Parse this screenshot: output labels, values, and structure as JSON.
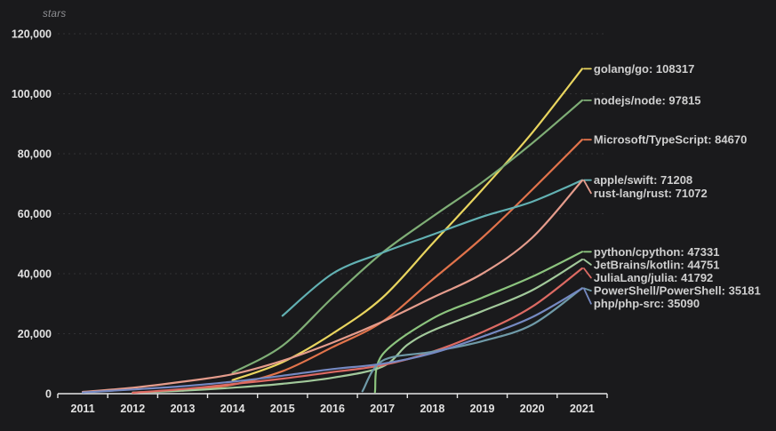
{
  "colors": {
    "background": "#1a1a1c",
    "grid": "#313134",
    "axis": "#e6e6e6",
    "tick_label": "#e2e2e2",
    "series_label": "#cfcfcf"
  },
  "chart_data": {
    "type": "line",
    "title": "",
    "ylabel": "stars",
    "xlabel": "",
    "ylim": [
      0,
      120000
    ],
    "xlim": [
      2011,
      2022
    ],
    "grid": "dashed-horizontal",
    "legend_position": "line-end-labels-right",
    "yticks": [
      0,
      20000,
      40000,
      60000,
      80000,
      100000,
      120000
    ],
    "ytick_labels": [
      "0",
      "20,000",
      "40,000",
      "60,000",
      "80,000",
      "100,000",
      "120,000"
    ],
    "x_years": [
      2011,
      2012,
      2013,
      2014,
      2015,
      2016,
      2017,
      2018,
      2019,
      2020,
      2021
    ],
    "x_tick_labels": [
      "2011",
      "2012",
      "2013",
      "2014",
      "2015",
      "2016",
      "2017",
      "2018",
      "2019",
      "2020",
      "2021"
    ],
    "series": [
      {
        "name": "golang/go",
        "final_value": 108317,
        "label": "golang/go: 108317",
        "color": "#e9d55f",
        "points": [
          [
            2014,
            4500
          ],
          [
            2015,
            10500
          ],
          [
            2016,
            20000
          ],
          [
            2017,
            32000
          ],
          [
            2018,
            50000
          ],
          [
            2019,
            68000
          ],
          [
            2020,
            87000
          ],
          [
            2021,
            108317
          ]
        ]
      },
      {
        "name": "nodejs/node",
        "final_value": 97815,
        "label": "nodejs/node: 97815",
        "color": "#7fae76",
        "points": [
          [
            2014,
            7000
          ],
          [
            2015,
            16000
          ],
          [
            2016,
            32000
          ],
          [
            2017,
            47000
          ],
          [
            2018,
            59000
          ],
          [
            2019,
            70500
          ],
          [
            2020,
            83500
          ],
          [
            2021,
            97815
          ]
        ]
      },
      {
        "name": "Microsoft/TypeScript",
        "final_value": 84670,
        "label": "Microsoft/TypeScript: 84670",
        "color": "#e1734b",
        "points": [
          [
            2013,
            1000
          ],
          [
            2014,
            3000
          ],
          [
            2015,
            7500
          ],
          [
            2016,
            15500
          ],
          [
            2017,
            24000
          ],
          [
            2018,
            38000
          ],
          [
            2019,
            52000
          ],
          [
            2020,
            68000
          ],
          [
            2021,
            84670
          ]
        ]
      },
      {
        "name": "apple/swift",
        "final_value": 71208,
        "label": "apple/swift: 71208",
        "color": "#62b1b3",
        "points": [
          [
            2015,
            26000
          ],
          [
            2016,
            40000
          ],
          [
            2017,
            47000
          ],
          [
            2018,
            53000
          ],
          [
            2019,
            59000
          ],
          [
            2020,
            64000
          ],
          [
            2021,
            71208
          ]
        ]
      },
      {
        "name": "rust-lang/rust",
        "final_value": 71072,
        "label": "rust-lang/rust: 71072",
        "color": "#e59c8c",
        "points": [
          [
            2011,
            600
          ],
          [
            2012,
            2000
          ],
          [
            2013,
            4000
          ],
          [
            2014,
            6500
          ],
          [
            2015,
            11000
          ],
          [
            2016,
            17000
          ],
          [
            2017,
            24000
          ],
          [
            2018,
            32000
          ],
          [
            2019,
            40000
          ],
          [
            2020,
            52000
          ],
          [
            2021,
            71072
          ]
        ]
      },
      {
        "name": "python/cpython",
        "final_value": 47331,
        "label": "python/cpython: 47331",
        "color": "#8cc47e",
        "points": [
          [
            2016.85,
            500
          ],
          [
            2017,
            13000
          ],
          [
            2018,
            25000
          ],
          [
            2019,
            32000
          ],
          [
            2020,
            39000
          ],
          [
            2021,
            47331
          ]
        ]
      },
      {
        "name": "JetBrains/kotlin",
        "final_value": 44751,
        "label": "JetBrains/kotlin: 44751",
        "color": "#a2c99b",
        "points": [
          [
            2012,
            400
          ],
          [
            2013,
            1000
          ],
          [
            2014,
            2000
          ],
          [
            2015,
            3300
          ],
          [
            2016,
            5300
          ],
          [
            2017,
            9000
          ],
          [
            2017.5,
            16300
          ],
          [
            2018,
            21000
          ],
          [
            2019,
            27500
          ],
          [
            2020,
            34500
          ],
          [
            2021,
            44751
          ]
        ]
      },
      {
        "name": "JuliaLang/julia",
        "final_value": 41792,
        "label": "JuliaLang/julia: 41792",
        "color": "#dd6a63",
        "points": [
          [
            2012,
            300
          ],
          [
            2013,
            1500
          ],
          [
            2014,
            3200
          ],
          [
            2015,
            5000
          ],
          [
            2016,
            7200
          ],
          [
            2017,
            9500
          ],
          [
            2018,
            14000
          ],
          [
            2019,
            20500
          ],
          [
            2020,
            29000
          ],
          [
            2021,
            41792
          ]
        ]
      },
      {
        "name": "PowerShell/PowerShell",
        "final_value": 35181,
        "label": "PowerShell/PowerShell: 35181",
        "color": "#6f9aa8",
        "points": [
          [
            2016.6,
            800
          ],
          [
            2017,
            11000
          ],
          [
            2018,
            14000
          ],
          [
            2019,
            17500
          ],
          [
            2020,
            23000
          ],
          [
            2021,
            35181
          ]
        ]
      },
      {
        "name": "php/php-src",
        "final_value": 35090,
        "label": "php/php-src: 35090",
        "color": "#7589c2",
        "points": [
          [
            2011,
            400
          ],
          [
            2012,
            1400
          ],
          [
            2013,
            2500
          ],
          [
            2014,
            4000
          ],
          [
            2015,
            6000
          ],
          [
            2016,
            8200
          ],
          [
            2017,
            10000
          ],
          [
            2018,
            13500
          ],
          [
            2019,
            19000
          ],
          [
            2020,
            25500
          ],
          [
            2021,
            35090
          ]
        ]
      }
    ]
  }
}
